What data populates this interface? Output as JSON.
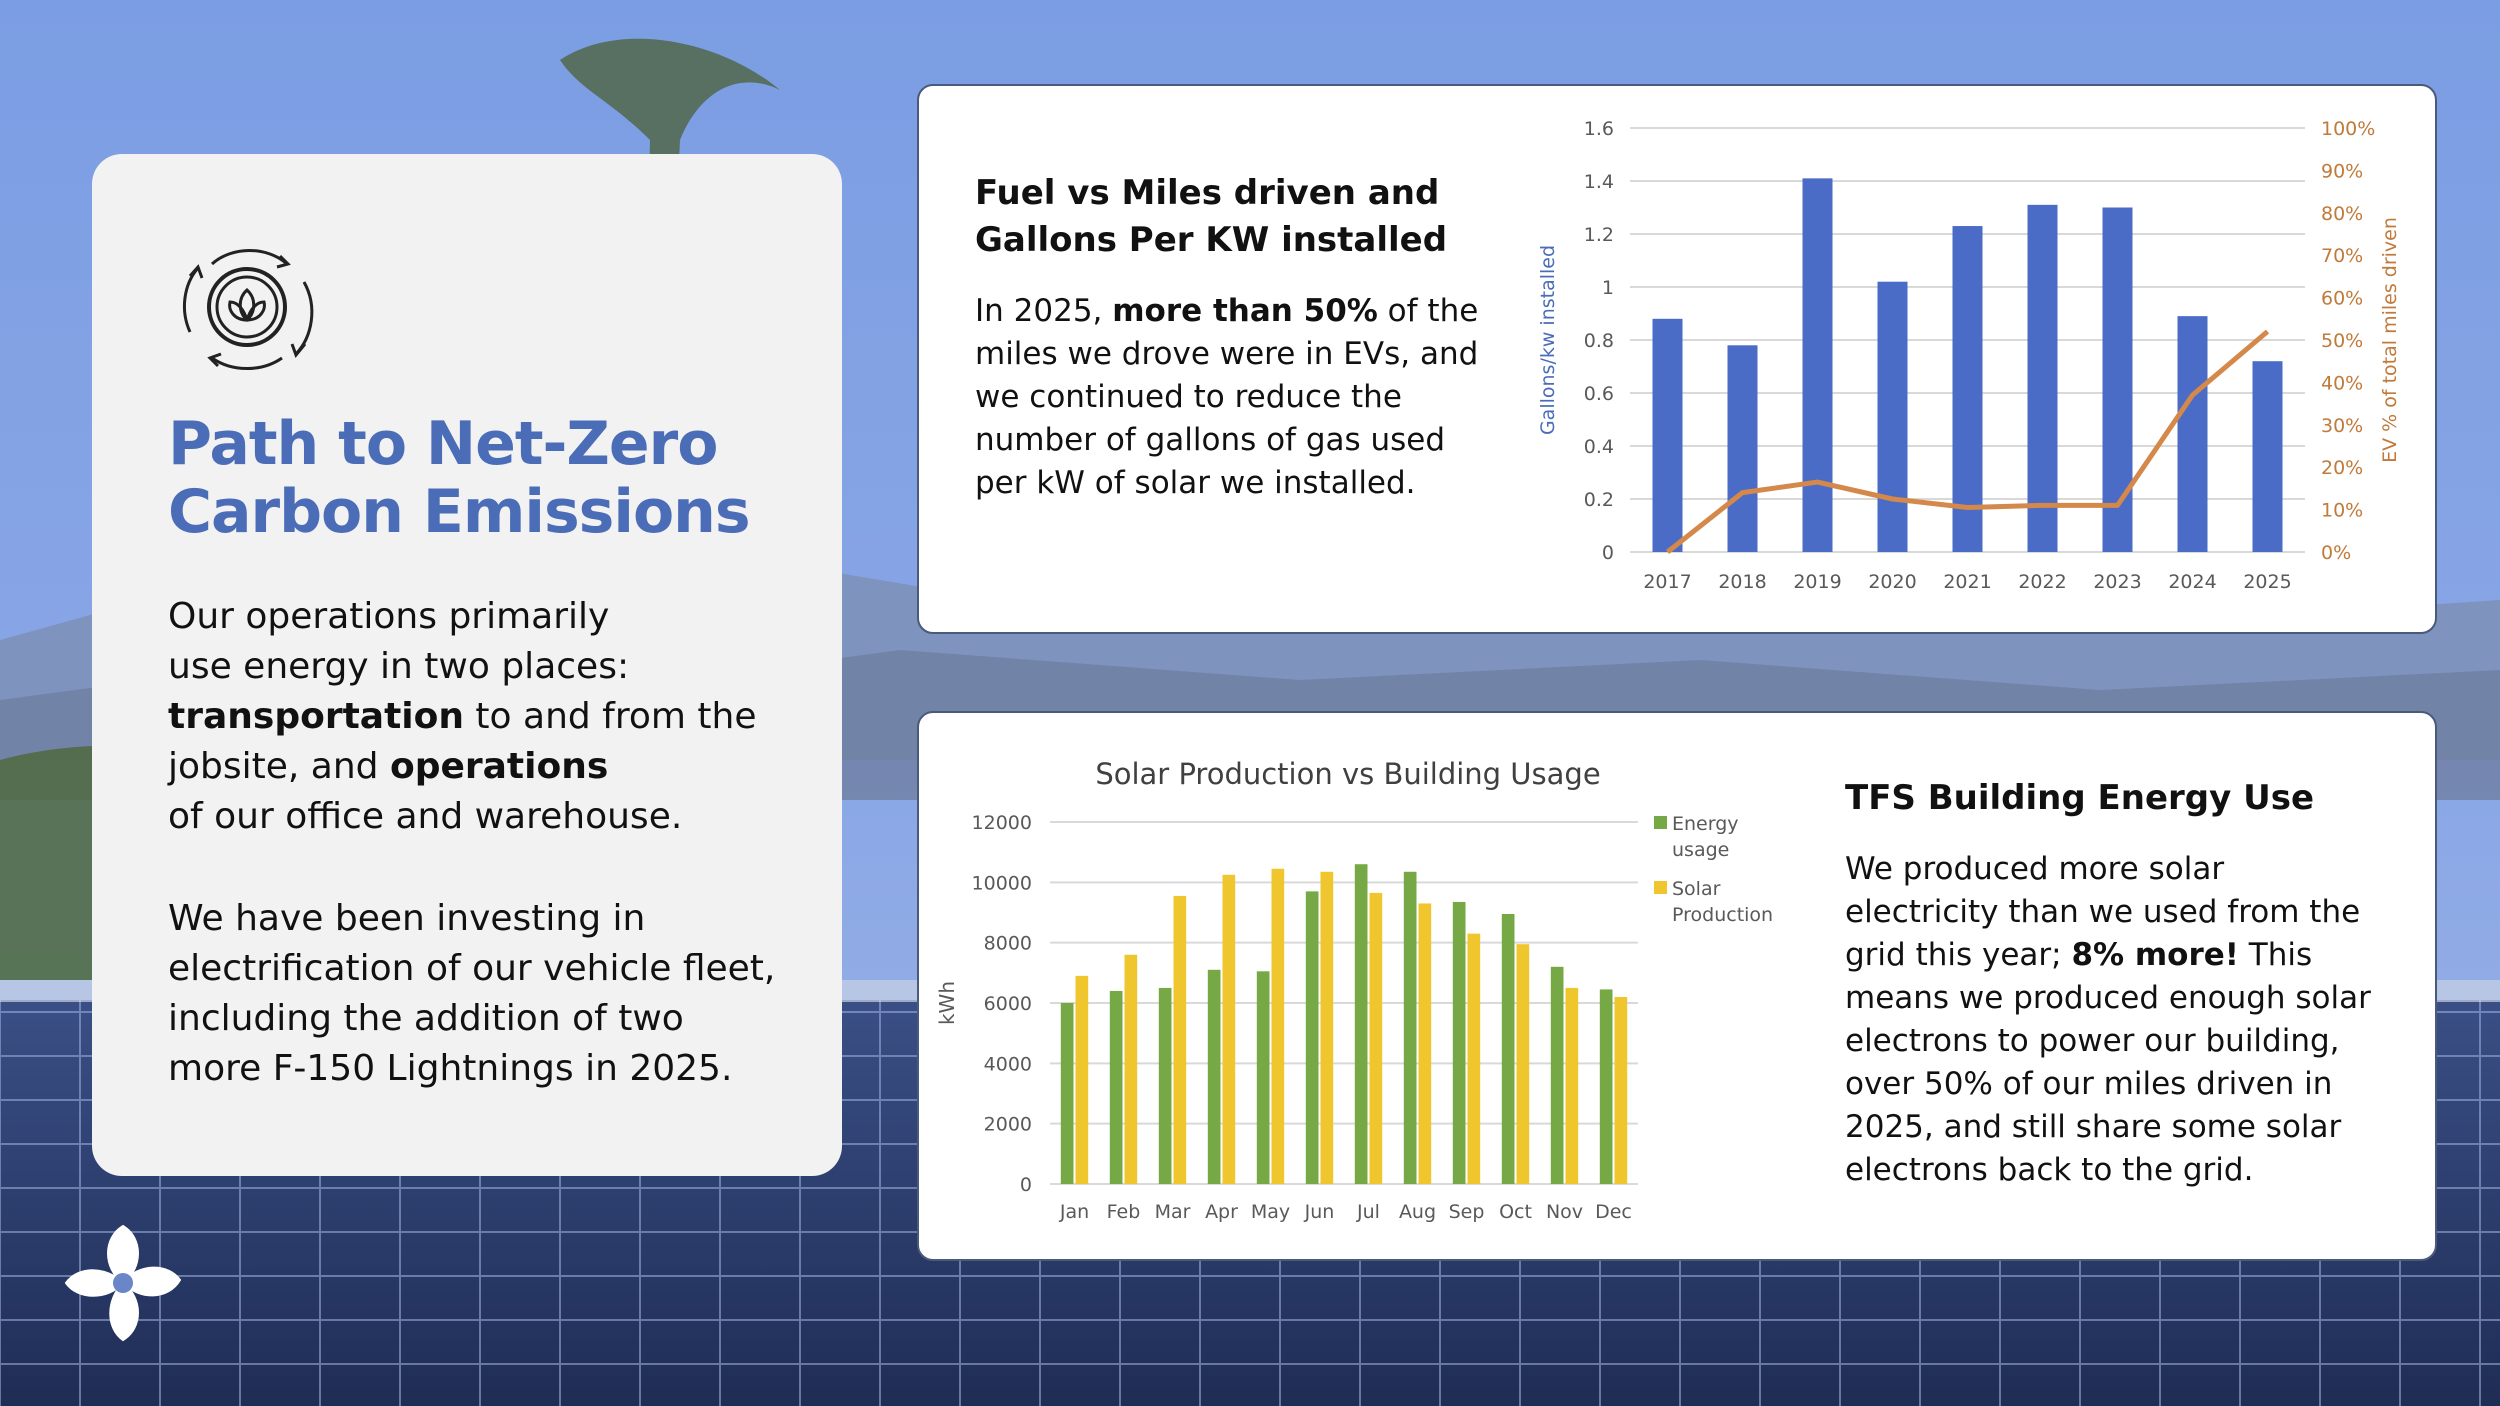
{
  "left_panel": {
    "title_line1": "Path to Net-Zero",
    "title_line2": "Carbon Emissions",
    "intro_line1": "Our operations primarily",
    "intro_line2": "use energy in two places:",
    "intro_bold1": "transportation",
    "intro_line3_rest": " to and from the",
    "intro_line4_pre": "jobsite, and ",
    "intro_bold2": "operations",
    "intro_line5": "of our office and warehouse.",
    "invest_line1": "We have been investing in",
    "invest_line2": "electrification of our vehicle fleet,",
    "invest_line3": "including the addition of two",
    "invest_line4": "more F-150 Lightnings in 2025."
  },
  "fuel_panel": {
    "title_line1": "Fuel vs Miles driven and",
    "title_line2": "Gallons Per KW installed",
    "text_pre": "In 2025, ",
    "text_bold": "more than 50%",
    "text_post1": " of the",
    "text_line2": "miles we drove were in EVs, and",
    "text_line3": "we continued to reduce the",
    "text_line4": "number of gallons of gas used",
    "text_line5": "per kW of solar we installed."
  },
  "tfs_panel": {
    "title": "TFS Building Energy Use",
    "line1": "We produced more solar",
    "line2": "electricity than we used from the",
    "line3_pre": "grid this year; ",
    "line3_bold": "8% more!",
    "line3_post": " This",
    "line4": "means we produced enough solar",
    "line5": "electrons to power our building,",
    "line6": "over 50% of our miles driven in",
    "line7": "2025, and still share some solar",
    "line8": "electrons back to the grid."
  },
  "icons": {
    "brand": "lotus-cycle-icon",
    "logo": "flower-logo-icon"
  },
  "colors": {
    "accent_blue": "#4b6cb7",
    "bar_blue": "#4a6bc6",
    "line_orange": "#d4894a",
    "energy_green": "#76a845",
    "solar_yellow": "#f0c62e"
  },
  "chart_data": [
    {
      "type": "bar",
      "title": "",
      "categories": [
        "2017",
        "2018",
        "2019",
        "2020",
        "2021",
        "2022",
        "2023",
        "2024",
        "2025"
      ],
      "ylabel": "Gallons/kw installed",
      "y2label": "EV % of total miles driven",
      "ylim": [
        0,
        1.6
      ],
      "y_ticks": [
        "0",
        "0.2",
        "0.4",
        "0.6",
        "0.8",
        "1",
        "1.2",
        "1.4",
        "1.6"
      ],
      "y2lim": [
        0,
        100
      ],
      "y2_ticks": [
        "0%",
        "10%",
        "20%",
        "30%",
        "40%",
        "50%",
        "60%",
        "70%",
        "80%",
        "90%",
        "100%"
      ],
      "grid": true,
      "series": [
        {
          "name": "Gallons/kw installed",
          "kind": "bar",
          "axis": "left",
          "values": [
            0.88,
            0.78,
            1.41,
            1.02,
            1.23,
            1.31,
            1.3,
            0.89,
            0.72
          ]
        },
        {
          "name": "EV % of total miles driven",
          "kind": "line",
          "axis": "right",
          "values": [
            0,
            14,
            16.5,
            12.5,
            10.5,
            11,
            11,
            37,
            52
          ]
        }
      ]
    },
    {
      "type": "bar",
      "title": "Solar Production vs Building Usage",
      "categories": [
        "Jan",
        "Feb",
        "Mar",
        "Apr",
        "May",
        "Jun",
        "Jul",
        "Aug",
        "Sep",
        "Oct",
        "Nov",
        "Dec"
      ],
      "ylabel": "kWh",
      "ylim": [
        0,
        12000
      ],
      "y_ticks": [
        "0",
        "2000",
        "4000",
        "6000",
        "8000",
        "10000",
        "12000"
      ],
      "grid": true,
      "legend_position": "right",
      "legend_labels": [
        [
          "Energy",
          "usage"
        ],
        [
          "Solar",
          "Production"
        ]
      ],
      "series": [
        {
          "name": "Energy usage",
          "values": [
            6000,
            6400,
            6500,
            7100,
            7050,
            9700,
            10600,
            10350,
            9350,
            8950,
            7200,
            6450
          ]
        },
        {
          "name": "Solar Production",
          "values": [
            6900,
            7600,
            9550,
            10250,
            10450,
            10350,
            9650,
            9300,
            8300,
            7950,
            6500,
            6200
          ]
        }
      ]
    }
  ]
}
